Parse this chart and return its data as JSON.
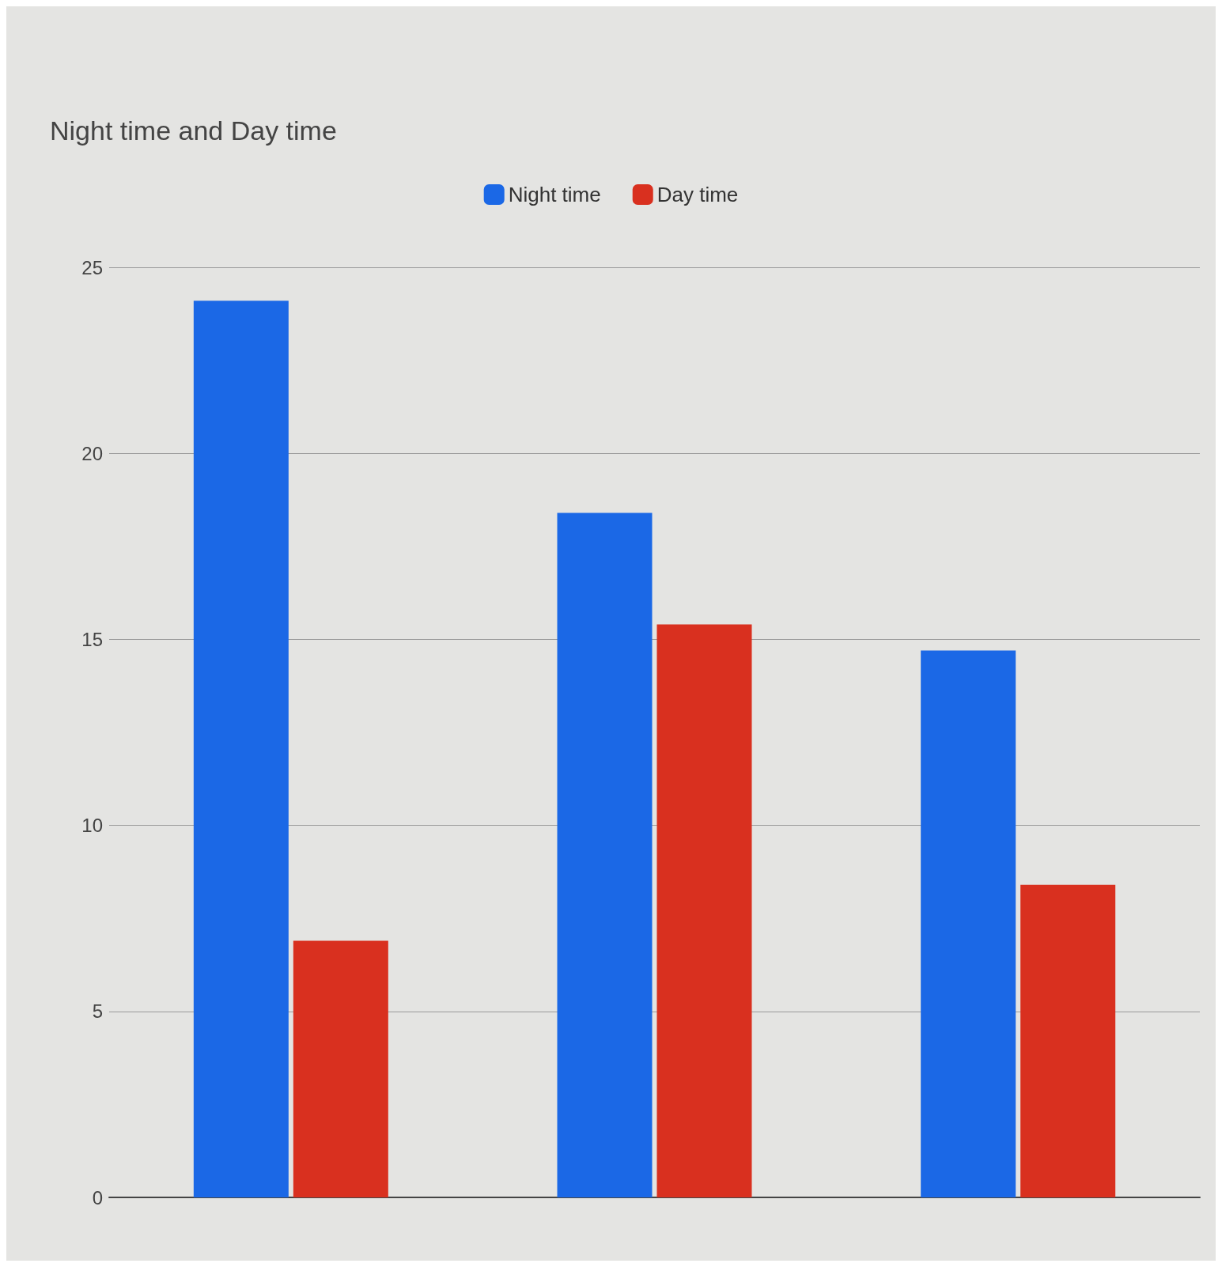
{
  "chart_data": {
    "type": "bar",
    "title": "Night time and Day time",
    "categories": [
      null,
      null,
      null
    ],
    "series": [
      {
        "name": "Night time",
        "color": "#1b68e6",
        "values": [
          24.1,
          18.4,
          14.7
        ]
      },
      {
        "name": "Day time",
        "color": "#d9301f",
        "values": [
          6.9,
          15.4,
          8.4
        ]
      }
    ],
    "ylim": [
      0,
      25
    ],
    "yticks": [
      0,
      5,
      10,
      15,
      20,
      25
    ],
    "grid": "y",
    "legend": "top"
  }
}
